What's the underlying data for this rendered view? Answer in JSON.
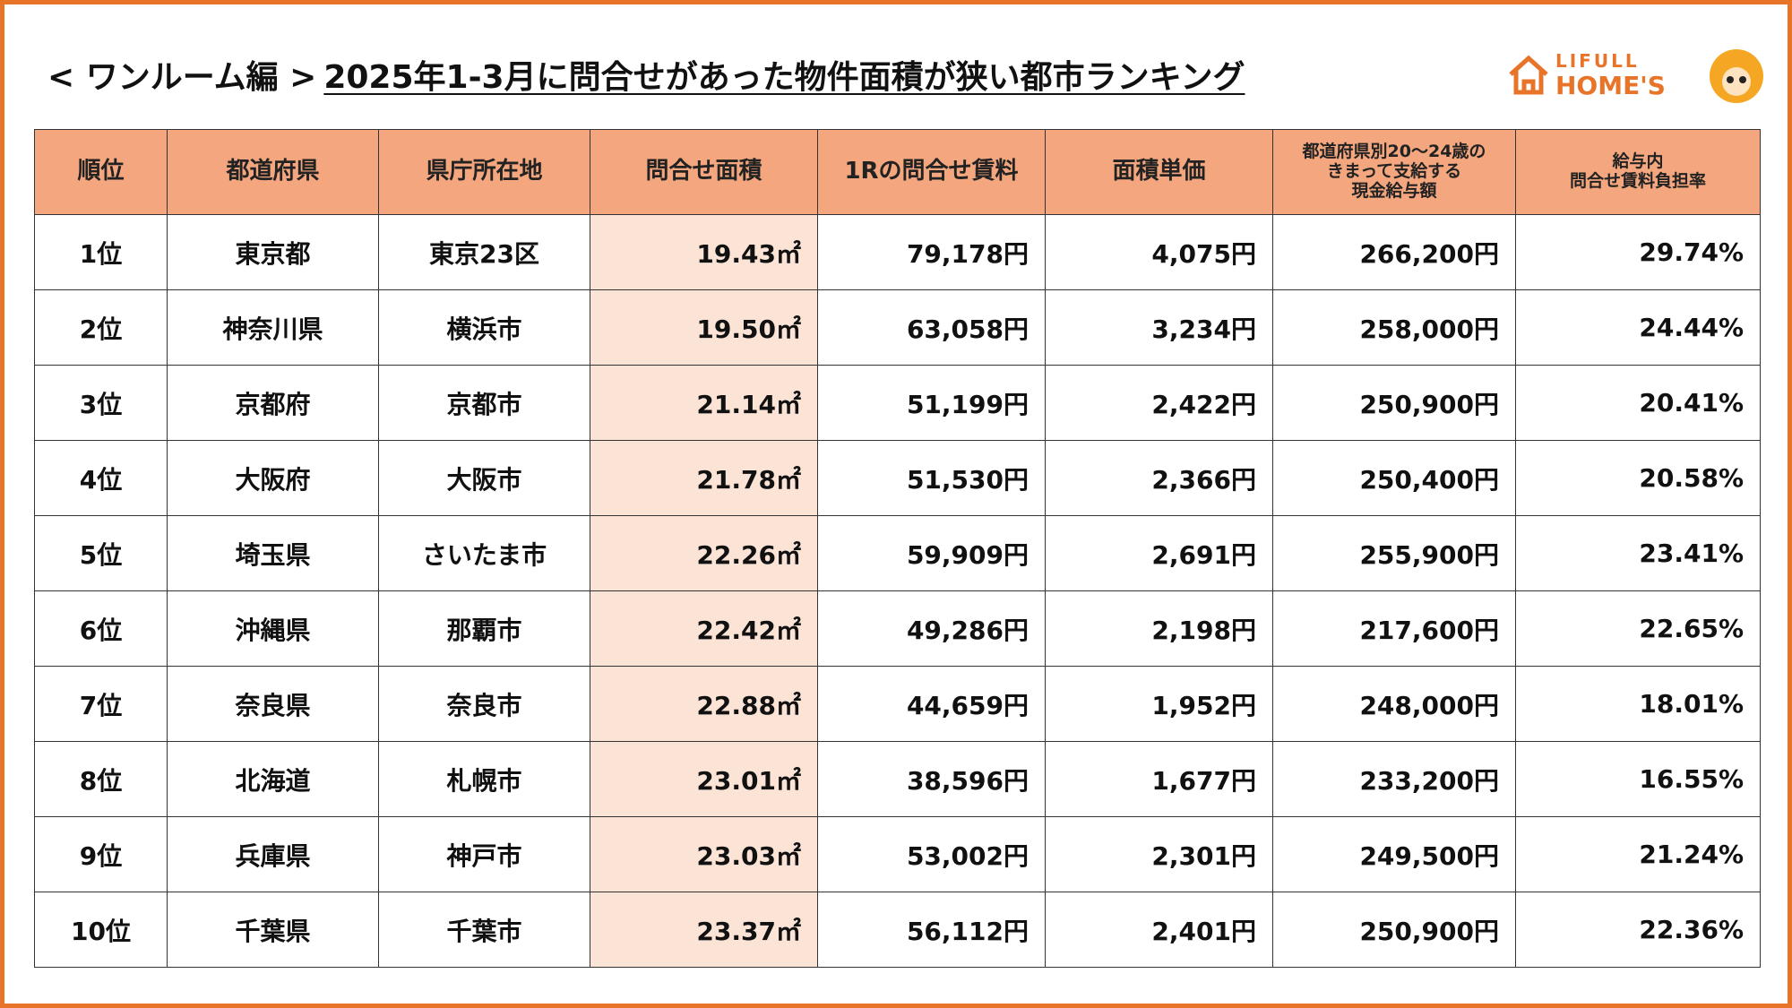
{
  "title": {
    "prefix": "< ワンルーム編 >",
    "main": "2025年1-3月に問合せがあった物件面積が狭い都市ランキング"
  },
  "logo": {
    "line1": "LIFULL",
    "line2": "HOME'S"
  },
  "table": {
    "headers": [
      [
        "順位"
      ],
      [
        "都道府県"
      ],
      [
        "県庁所在地"
      ],
      [
        "問合せ面積"
      ],
      [
        "1Rの問合せ賃料"
      ],
      [
        "面積単価"
      ],
      [
        "都道府県別20〜24歳の",
        "きまって支給する",
        "現金給与額"
      ],
      [
        "給与内",
        "問合せ賃料負担率"
      ]
    ],
    "rows": [
      [
        "1位",
        "東京都",
        "東京23区",
        "19.43㎡",
        "79,178円",
        "4,075円",
        "266,200円",
        "29.74%"
      ],
      [
        "2位",
        "神奈川県",
        "横浜市",
        "19.50㎡",
        "63,058円",
        "3,234円",
        "258,000円",
        "24.44%"
      ],
      [
        "3位",
        "京都府",
        "京都市",
        "21.14㎡",
        "51,199円",
        "2,422円",
        "250,900円",
        "20.41%"
      ],
      [
        "4位",
        "大阪府",
        "大阪市",
        "21.78㎡",
        "51,530円",
        "2,366円",
        "250,400円",
        "20.58%"
      ],
      [
        "5位",
        "埼玉県",
        "さいたま市",
        "22.26㎡",
        "59,909円",
        "2,691円",
        "255,900円",
        "23.41%"
      ],
      [
        "6位",
        "沖縄県",
        "那覇市",
        "22.42㎡",
        "49,286円",
        "2,198円",
        "217,600円",
        "22.65%"
      ],
      [
        "7位",
        "奈良県",
        "奈良市",
        "22.88㎡",
        "44,659円",
        "1,952円",
        "248,000円",
        "18.01%"
      ],
      [
        "8位",
        "北海道",
        "札幌市",
        "23.01㎡",
        "38,596円",
        "1,677円",
        "233,200円",
        "16.55%"
      ],
      [
        "9位",
        "兵庫県",
        "神戸市",
        "23.03㎡",
        "53,002円",
        "2,301円",
        "249,500円",
        "21.24%"
      ],
      [
        "10位",
        "千葉県",
        "千葉市",
        "23.37㎡",
        "56,112円",
        "2,401円",
        "250,900円",
        "22.36%"
      ]
    ]
  }
}
